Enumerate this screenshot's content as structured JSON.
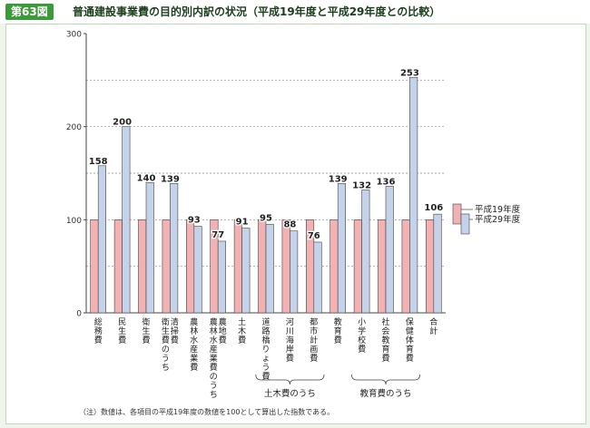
{
  "figure": {
    "number": "第63図",
    "title": "普通建設事業費の目的別内訳の状況（平成19年度と平成29年度との比較）",
    "note": "（注）数値は、各項目の平成19年度の数値を100として算出した指数である。"
  },
  "colors": {
    "h19": "#f2b1b3",
    "h29": "#c5d3ea",
    "bar_stroke": "#444444",
    "badge": "#3d9a3b",
    "frame": "#eef6ec"
  },
  "chart_data": {
    "type": "bar",
    "ylim": [
      0,
      300
    ],
    "yticks": [
      "0",
      "100",
      "200",
      "300"
    ],
    "grid": "dashed at 50, 100, 150, 200, 250",
    "legend_position": "right",
    "categories": [
      "総務費",
      "民生費",
      "衛生費",
      "衛生費のうち清掃費",
      "農林水産業費",
      "農林水産業費のうち農地費",
      "土木費",
      "道路橋りょう費",
      "河川海岸費",
      "都市計画費",
      "教育費",
      "小学校費",
      "社会教育費",
      "保健体育費",
      "合計"
    ],
    "series": [
      {
        "name": "平成19年度",
        "values": [
          100,
          100,
          100,
          100,
          100,
          100,
          100,
          100,
          100,
          100,
          100,
          100,
          100,
          100,
          100
        ]
      },
      {
        "name": "平成29年度",
        "values": [
          158,
          200,
          140,
          139,
          93,
          77,
          91,
          95,
          88,
          76,
          139,
          132,
          136,
          253,
          106
        ]
      }
    ],
    "groups": [
      {
        "label": "土木費のうち",
        "from": 7,
        "to": 9
      },
      {
        "label": "教育費のうち",
        "from": 11,
        "to": 13
      }
    ]
  }
}
